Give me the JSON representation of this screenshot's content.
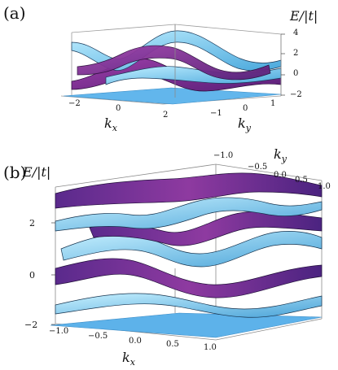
{
  "figure": {
    "panels": [
      {
        "label": "(a)",
        "axes": {
          "z_title": "E/|t|",
          "x_title": "k",
          "x_sub": "x",
          "y_title": "k",
          "y_sub": "y",
          "z_ticks": [
            "4",
            "2",
            "0",
            "−2"
          ],
          "x_ticks": [
            "−2",
            "0",
            "2"
          ],
          "y_ticks": [
            "−1",
            "0",
            "1"
          ]
        }
      },
      {
        "label": "(b)",
        "axes": {
          "z_title": "E/|t|",
          "x_title": "k",
          "x_sub": "x",
          "y_title": "k",
          "y_sub": "y",
          "z_ticks": [
            "2",
            "0",
            "−2"
          ],
          "x_ticks": [
            "−1.0",
            "−0.5",
            "0.0",
            "0.5",
            "1.0"
          ],
          "y_ticks": [
            "−1.0",
            "−0.5",
            "0.0",
            "0.5",
            "1.0"
          ]
        }
      }
    ],
    "colors": {
      "light_band": "#7fd0f2",
      "dark_band": "#7a2a8a",
      "flat_band": "#5cb0ea",
      "box_line": "#8a8a8a"
    }
  }
}
